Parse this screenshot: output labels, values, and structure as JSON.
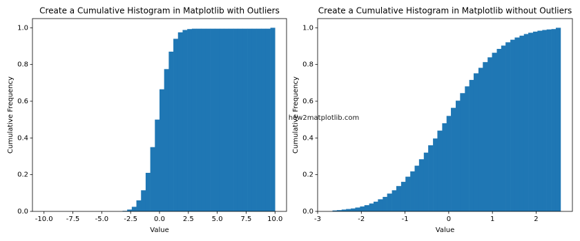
{
  "chart_data": [
    {
      "type": "histogram",
      "title": "Create a Cumulative Histogram in Matplotlib with Outliers",
      "x_label": "Value",
      "y_label": "Cumulative Frequency",
      "color": "#1f77b4",
      "bins": [
        -10,
        -9.6,
        -9.2,
        -8.8,
        -8.4,
        -8,
        -7.6,
        -7.2,
        -6.8,
        -6.4,
        -6,
        -5.6,
        -5.2,
        -4.8,
        -4.4,
        -4,
        -3.6,
        -3.2,
        -2.8,
        -2.4,
        -2,
        -1.6,
        -1.2,
        -0.8,
        -0.4,
        0,
        0.4,
        0.8,
        1.2,
        1.6,
        2,
        2.4,
        2.8,
        3.2,
        3.6,
        4,
        4.4,
        4.8,
        5.2,
        5.6,
        6,
        6.4,
        6.8,
        7.2,
        7.6,
        8,
        8.4,
        8.8,
        9.2,
        9.6,
        10
      ],
      "values": [
        0,
        0,
        0,
        0,
        0,
        0,
        0,
        0,
        0,
        0,
        0,
        0,
        0,
        0,
        0,
        0,
        0,
        0.003,
        0.01,
        0.025,
        0.06,
        0.115,
        0.21,
        0.35,
        0.5,
        0.665,
        0.775,
        0.87,
        0.94,
        0.975,
        0.988,
        0.993,
        0.995,
        0.995,
        0.995,
        0.995,
        0.995,
        0.995,
        0.995,
        0.995,
        0.995,
        0.995,
        0.995,
        0.995,
        0.995,
        0.995,
        0.995,
        0.995,
        0.995,
        1.0
      ],
      "xlim": [
        -11,
        11
      ],
      "ylim": [
        0,
        1.05
      ],
      "xticks": [
        {
          "value": -10,
          "label": "-10.0"
        },
        {
          "value": -7.5,
          "label": "-7.5"
        },
        {
          "value": -5,
          "label": "-5.0"
        },
        {
          "value": -2.5,
          "label": "-2.5"
        },
        {
          "value": 0,
          "label": "0.0"
        },
        {
          "value": 2.5,
          "label": "2.5"
        },
        {
          "value": 5,
          "label": "5.0"
        },
        {
          "value": 7.5,
          "label": "7.5"
        },
        {
          "value": 10,
          "label": "10.0"
        }
      ],
      "yticks": [
        {
          "value": 0,
          "label": "0.0"
        },
        {
          "value": 0.2,
          "label": "0.2"
        },
        {
          "value": 0.4,
          "label": "0.4"
        },
        {
          "value": 0.6,
          "label": "0.6"
        },
        {
          "value": 0.8,
          "label": "0.8"
        },
        {
          "value": 1,
          "label": "1.0"
        }
      ]
    },
    {
      "type": "histogram",
      "title": "Create a Cumulative Histogram in Matplotlib without Outliers",
      "x_label": "Value",
      "y_label": "Cumulative Frequency",
      "annotation": "how2matplotlib.com",
      "color": "#1f77b4",
      "bins": [
        -2.66,
        -2.56,
        -2.45,
        -2.35,
        -2.24,
        -2.14,
        -2.03,
        -1.93,
        -1.82,
        -1.72,
        -1.62,
        -1.51,
        -1.41,
        -1.3,
        -1.2,
        -1.09,
        -0.99,
        -0.88,
        -0.78,
        -0.68,
        -0.57,
        -0.47,
        -0.36,
        -0.26,
        -0.15,
        -0.05,
        0.05,
        0.16,
        0.26,
        0.37,
        0.47,
        0.57,
        0.68,
        0.78,
        0.89,
        0.99,
        1.1,
        1.2,
        1.3,
        1.41,
        1.51,
        1.62,
        1.72,
        1.82,
        1.93,
        2.03,
        2.14,
        2.24,
        2.35,
        2.45,
        2.56
      ],
      "values": [
        0.005,
        0.007,
        0.01,
        0.013,
        0.016,
        0.021,
        0.027,
        0.034,
        0.043,
        0.053,
        0.066,
        0.079,
        0.097,
        0.115,
        0.138,
        0.161,
        0.189,
        0.218,
        0.249,
        0.284,
        0.32,
        0.36,
        0.397,
        0.44,
        0.48,
        0.52,
        0.564,
        0.603,
        0.644,
        0.681,
        0.716,
        0.752,
        0.782,
        0.813,
        0.839,
        0.864,
        0.885,
        0.903,
        0.921,
        0.935,
        0.947,
        0.957,
        0.966,
        0.973,
        0.979,
        0.984,
        0.988,
        0.991,
        0.993,
        1.0
      ],
      "xlim": [
        -3,
        2.83
      ],
      "ylim": [
        0,
        1.05
      ],
      "xticks": [
        -3,
        -2,
        -1,
        0,
        1,
        2
      ],
      "yticks": [
        {
          "value": 0,
          "label": "0.0"
        },
        {
          "value": 0.2,
          "label": "0.2"
        },
        {
          "value": 0.4,
          "label": "0.4"
        },
        {
          "value": 0.6,
          "label": "0.6"
        },
        {
          "value": 0.8,
          "label": "0.8"
        },
        {
          "value": 1,
          "label": "1.0"
        }
      ]
    }
  ]
}
